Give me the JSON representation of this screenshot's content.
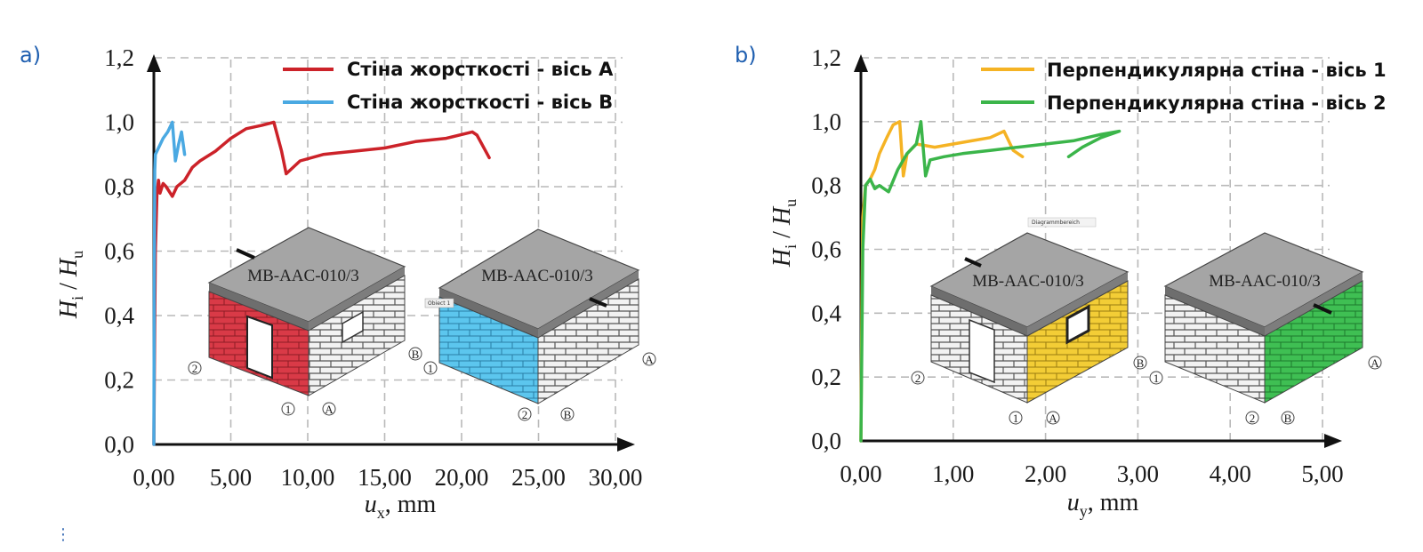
{
  "chart_data": [
    {
      "panel_label": "a)",
      "type": "line",
      "ylabel": "H_i / H_u",
      "ylabel_parts": {
        "H1": "H",
        "sub1": "i",
        "slash": " / ",
        "H2": "H",
        "sub2": "u"
      },
      "xlabel_parts": {
        "u": "u",
        "sub": "x",
        "rest": ", mm"
      },
      "xlim": [
        0,
        30
      ],
      "ylim": [
        0,
        1.2
      ],
      "xticks": [
        "0,00",
        "5,00",
        "10,00",
        "15,00",
        "20,00",
        "25,00",
        "30,00"
      ],
      "yticks": [
        "0,0",
        "0,2",
        "0,4",
        "0,6",
        "0,8",
        "1,0",
        "1,2"
      ],
      "grid": true,
      "legend_position": "top-right",
      "series": [
        {
          "name": "Стіна жорсткості - вісь A",
          "color": "#cc2229",
          "x": [
            0,
            0.05,
            0.1,
            0.2,
            0.3,
            0.4,
            0.6,
            0.8,
            1.2,
            1.5,
            2.0,
            2.5,
            3.0,
            4.0,
            5.0,
            6.0,
            7.0,
            7.8,
            8.3,
            8.6,
            9.5,
            11,
            13,
            15,
            17,
            19,
            20.7,
            21.0,
            21.8
          ],
          "y": [
            0,
            0.35,
            0.6,
            0.78,
            0.82,
            0.78,
            0.81,
            0.8,
            0.77,
            0.8,
            0.82,
            0.86,
            0.88,
            0.91,
            0.95,
            0.98,
            0.99,
            1.0,
            0.91,
            0.84,
            0.88,
            0.9,
            0.91,
            0.92,
            0.94,
            0.95,
            0.97,
            0.96,
            0.89
          ]
        },
        {
          "name": "Стіна жорсткості - вісь B",
          "color": "#4aa9e2",
          "x": [
            0,
            0.03,
            0.06,
            0.1,
            0.3,
            0.6,
            0.9,
            1.2,
            1.4,
            1.6,
            1.8,
            2.0
          ],
          "y": [
            0,
            0.5,
            0.85,
            0.9,
            0.92,
            0.95,
            0.97,
            1.0,
            0.88,
            0.93,
            0.97,
            0.9
          ]
        }
      ]
    },
    {
      "panel_label": "b)",
      "type": "line",
      "ylabel": "H_i / H_u",
      "ylabel_parts": {
        "H1": "H",
        "sub1": "i",
        "slash": " / ",
        "H2": "H",
        "sub2": "u"
      },
      "xlabel_parts": {
        "u": "u",
        "sub": "y",
        "rest": ", mm"
      },
      "xlim": [
        0,
        5
      ],
      "ylim": [
        0,
        1.2
      ],
      "xticks": [
        "0,00",
        "1,00",
        "2,00",
        "3,00",
        "4,00",
        "5,00"
      ],
      "yticks": [
        "0,0",
        "0,2",
        "0,4",
        "0,6",
        "0,8",
        "1,0",
        "1,2"
      ],
      "grid": true,
      "legend_position": "top-right",
      "series": [
        {
          "name": "Перпендикулярна стіна - вісь 1",
          "color": "#f5b324",
          "x": [
            0,
            0.01,
            0.02,
            0.05,
            0.1,
            0.15,
            0.2,
            0.28,
            0.35,
            0.42,
            0.46,
            0.5,
            0.6,
            0.8,
            1.0,
            1.2,
            1.4,
            1.55,
            1.6,
            1.65,
            1.75
          ],
          "y": [
            0,
            0.4,
            0.7,
            0.8,
            0.82,
            0.85,
            0.9,
            0.95,
            0.99,
            1.0,
            0.83,
            0.9,
            0.93,
            0.92,
            0.93,
            0.94,
            0.95,
            0.97,
            0.94,
            0.91,
            0.89
          ]
        },
        {
          "name": "Перпендикулярна стіна - вісь 2",
          "color": "#3bb54a",
          "x": [
            0,
            0.02,
            0.05,
            0.1,
            0.15,
            0.2,
            0.3,
            0.4,
            0.5,
            0.6,
            0.65,
            0.7,
            0.75,
            0.9,
            1.1,
            1.4,
            1.7,
            2.0,
            2.3,
            2.6,
            2.8,
            2.6,
            2.4,
            2.25
          ],
          "y": [
            0,
            0.6,
            0.8,
            0.82,
            0.79,
            0.8,
            0.78,
            0.85,
            0.9,
            0.93,
            1.0,
            0.83,
            0.88,
            0.89,
            0.9,
            0.91,
            0.92,
            0.93,
            0.94,
            0.96,
            0.97,
            0.95,
            0.92,
            0.89
          ]
        }
      ]
    }
  ],
  "insets": {
    "house_label": "MB-AAC-010/3",
    "markers": [
      "1",
      "2",
      "A",
      "B"
    ],
    "small_tag_a": "Obiect 1",
    "small_tag_b": "Diagrammbereich",
    "colors": {
      "roof": "#a7a7a7",
      "brick_gray": "#f0f0f0",
      "axis_a_wall": "#d93a47",
      "axis_b_wall": "#5cc6ee",
      "axis_1_wall": "#f3cd36",
      "axis_2_wall": "#3fbf53"
    }
  },
  "menu_glyph": "⋮"
}
